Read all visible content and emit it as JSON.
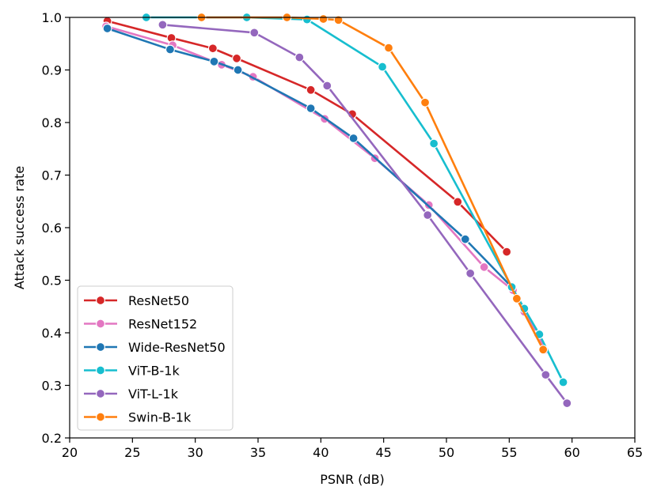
{
  "chart_data": {
    "type": "line",
    "title": "",
    "xlabel": "PSNR (dB)",
    "ylabel": "Attack success rate",
    "xlim": [
      20,
      65
    ],
    "ylim": [
      0.2,
      1.0
    ],
    "xticks": [
      20,
      25,
      30,
      35,
      40,
      45,
      50,
      55,
      60,
      65
    ],
    "yticks": [
      0.2,
      0.3,
      0.4,
      0.5,
      0.6,
      0.7,
      0.8,
      0.9,
      1.0
    ],
    "xtick_labels": [
      "20",
      "25",
      "30",
      "35",
      "40",
      "45",
      "50",
      "55",
      "60",
      "65"
    ],
    "ytick_labels": [
      "0.2",
      "0.3",
      "0.4",
      "0.5",
      "0.6",
      "0.7",
      "0.8",
      "0.9",
      "1.0"
    ],
    "grid": false,
    "legend_position": "lower-left",
    "series": [
      {
        "name": "ResNet50",
        "color": "#d62728",
        "points": [
          [
            23.0,
            0.993
          ],
          [
            28.1,
            0.961
          ],
          [
            31.4,
            0.941
          ],
          [
            33.3,
            0.922
          ],
          [
            39.2,
            0.862
          ],
          [
            42.5,
            0.816
          ],
          [
            50.9,
            0.649
          ],
          [
            54.8,
            0.554
          ]
        ]
      },
      {
        "name": "ResNet152",
        "color": "#e377c2",
        "points": [
          [
            22.9,
            0.983
          ],
          [
            28.2,
            0.947
          ],
          [
            32.1,
            0.91
          ],
          [
            34.6,
            0.887
          ],
          [
            40.3,
            0.807
          ],
          [
            44.3,
            0.732
          ],
          [
            48.6,
            0.643
          ],
          [
            53.0,
            0.525
          ],
          [
            55.3,
            0.481
          ],
          [
            56.2,
            0.44
          ],
          [
            57.3,
            0.397
          ],
          [
            57.8,
            0.367
          ]
        ]
      },
      {
        "name": "Wide-ResNet50",
        "color": "#1f77b4",
        "points": [
          [
            23.0,
            0.979
          ],
          [
            28.0,
            0.939
          ],
          [
            31.5,
            0.916
          ],
          [
            33.4,
            0.9
          ],
          [
            39.2,
            0.827
          ],
          [
            42.6,
            0.77
          ],
          [
            51.5,
            0.578
          ],
          [
            55.2,
            0.487
          ]
        ]
      },
      {
        "name": "ViT-B-1k",
        "color": "#17becf",
        "points": [
          [
            26.1,
            1.0
          ],
          [
            34.1,
            1.0
          ],
          [
            38.9,
            0.996
          ],
          [
            44.9,
            0.906
          ],
          [
            49.0,
            0.76
          ],
          [
            55.2,
            0.487
          ],
          [
            56.2,
            0.446
          ],
          [
            57.4,
            0.397
          ],
          [
            59.3,
            0.306
          ]
        ]
      },
      {
        "name": "ViT-L-1k",
        "color": "#9467bd",
        "points": [
          [
            27.4,
            0.986
          ],
          [
            34.7,
            0.971
          ],
          [
            38.3,
            0.924
          ],
          [
            40.5,
            0.87
          ],
          [
            48.5,
            0.624
          ],
          [
            51.9,
            0.513
          ],
          [
            57.9,
            0.32
          ],
          [
            59.6,
            0.266
          ]
        ]
      },
      {
        "name": "Swin-B-1k",
        "color": "#ff7f0e",
        "points": [
          [
            30.5,
            1.0
          ],
          [
            37.3,
            1.0
          ],
          [
            40.2,
            0.997
          ],
          [
            41.4,
            0.995
          ],
          [
            45.4,
            0.942
          ],
          [
            48.3,
            0.838
          ],
          [
            55.6,
            0.465
          ],
          [
            57.7,
            0.368
          ]
        ]
      }
    ]
  }
}
